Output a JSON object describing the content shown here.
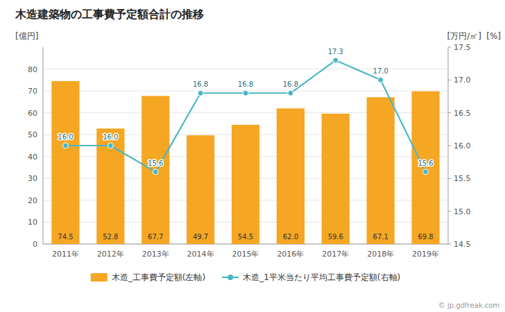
{
  "chart_data": {
    "type": "bar",
    "title": "木造建築物の工事費予定額合計の推移",
    "categories": [
      "2011年",
      "2012年",
      "2013年",
      "2014年",
      "2015年",
      "2016年",
      "2017年",
      "2018年",
      "2019年"
    ],
    "series": [
      {
        "name": "木造_工事費予定額(左軸)",
        "type": "bar",
        "color": "#f5a623",
        "values": [
          74.5,
          52.8,
          67.7,
          49.7,
          54.5,
          62.0,
          59.6,
          67.1,
          69.8
        ],
        "value_labels": [
          "74.5",
          "52.8",
          "67.7",
          "49.7",
          "54.5",
          "62.0",
          "59.6",
          "67.1",
          "69.8"
        ],
        "data_labels": true
      },
      {
        "name": "木造_1平米当たり平均工事費予定額(右軸)",
        "type": "line",
        "axis": "y2",
        "color": "#4ab8c4",
        "marker": "circle",
        "values": [
          16.0,
          16.0,
          15.6,
          16.8,
          16.8,
          16.8,
          17.3,
          17.0,
          15.6
        ],
        "value_labels": [
          "16.0",
          "16.0",
          "15.6",
          "16.8",
          "16.8",
          "16.8",
          "17.3",
          "17.0",
          "15.6"
        ],
        "data_labels": true
      }
    ],
    "ylabel": "[億円]",
    "y2label": "[万円/㎡]",
    "annotations": [
      "[%]",
      "© jp.gdfreak.com"
    ],
    "ylim": [
      0,
      90
    ],
    "yticks": [
      0,
      10,
      20,
      30,
      40,
      50,
      60,
      70,
      80
    ],
    "y2lim": [
      14.5,
      17.5
    ],
    "y2ticks": [
      14.5,
      {
        "value": 15.0,
        "label": "15.0"
      },
      15.5,
      {
        "value": 16.0,
        "label": "16.0"
      },
      16.5,
      {
        "value": 17.0,
        "label": "17.0"
      },
      17.5
    ],
    "grid": true,
    "legend": "bottom"
  }
}
